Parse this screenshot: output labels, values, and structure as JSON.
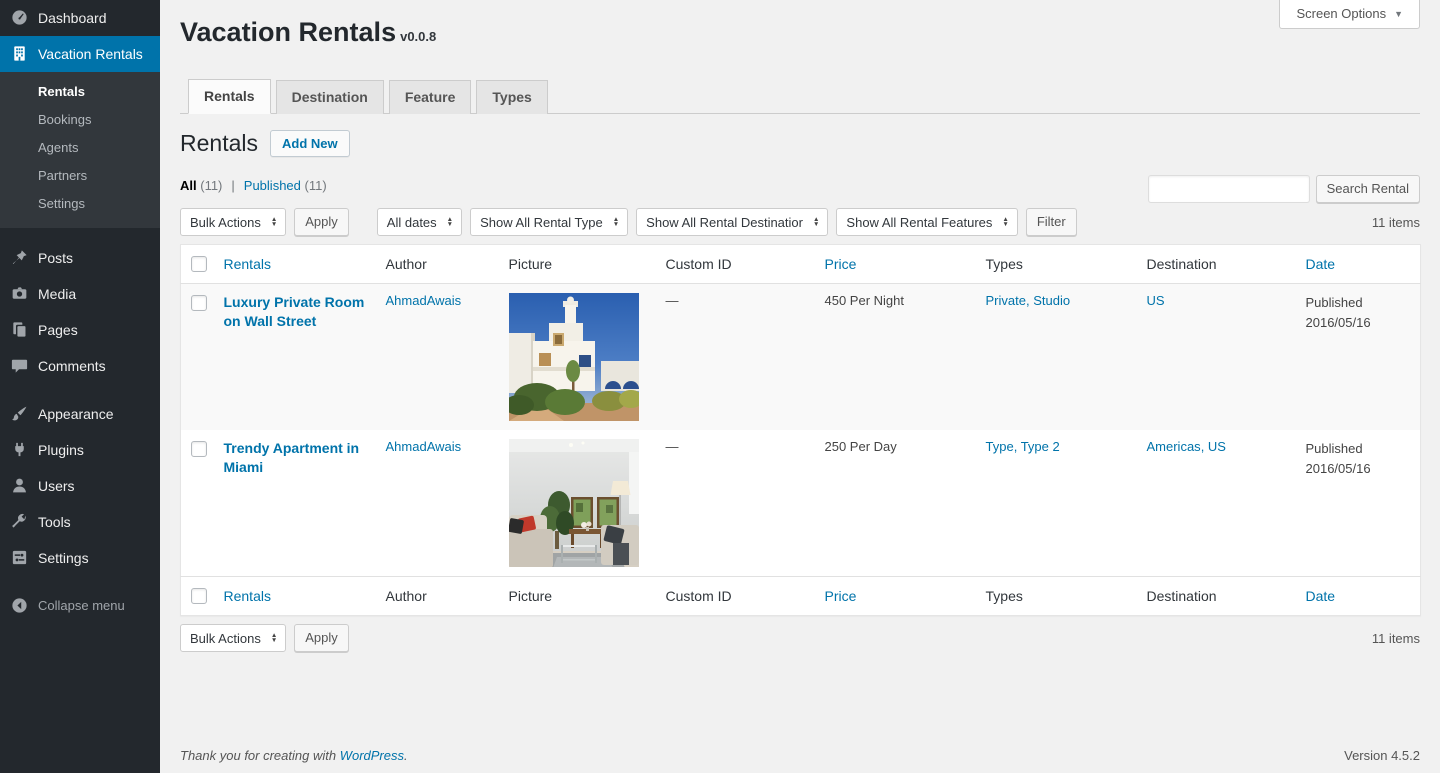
{
  "colors": {
    "accent": "#0073aa",
    "sidebar_bg": "#23282d",
    "sidebar_submenu_bg": "#32373c",
    "active_menu_bg": "#0073aa",
    "page_bg": "#f1f1f1",
    "alternate_row_bg": "#f9f9f9"
  },
  "screen_options": {
    "label": "Screen Options",
    "icon": "triangle-down"
  },
  "page": {
    "title": "Vacation Rentals",
    "version_badge": "v0.0.8"
  },
  "tabs": [
    {
      "label": "Rentals",
      "active": true
    },
    {
      "label": "Destination",
      "active": false
    },
    {
      "label": "Feature",
      "active": false
    },
    {
      "label": "Types",
      "active": false
    }
  ],
  "section": {
    "heading": "Rentals",
    "add_new_label": "Add New"
  },
  "views": [
    {
      "label": "All",
      "count": "(11)",
      "current": true
    },
    {
      "label": "Published",
      "count": "(11)",
      "current": false
    }
  ],
  "filters": {
    "bulk_actions": "Bulk Actions",
    "apply": "Apply",
    "all_dates": "All dates",
    "rental_type": "Show All Rental Type",
    "rental_destination": "Show All Rental Destinatior",
    "rental_features": "Show All Rental Features",
    "filter": "Filter"
  },
  "search": {
    "value": "",
    "button_label": "Search Rental"
  },
  "items_count": "11 items",
  "table": {
    "columns": [
      {
        "label": "Rentals",
        "sortable": true
      },
      {
        "label": "Author",
        "sortable": false
      },
      {
        "label": "Picture",
        "sortable": false
      },
      {
        "label": "Custom ID",
        "sortable": false
      },
      {
        "label": "Price",
        "sortable": true
      },
      {
        "label": "Types",
        "sortable": false
      },
      {
        "label": "Destination",
        "sortable": false
      },
      {
        "label": "Date",
        "sortable": true
      }
    ],
    "rows": [
      {
        "title": "Luxury Private Room on Wall Street",
        "author": "AhmadAwais",
        "picture": "villa",
        "custom_id": "—",
        "price": "450 Per Night",
        "types": [
          "Private",
          "Studio"
        ],
        "destinations": [
          "US"
        ],
        "date_status": "Published",
        "date": "2016/05/16"
      },
      {
        "title": "Trendy Apartment in Miami",
        "author": "AhmadAwais",
        "picture": "living-room",
        "custom_id": "—",
        "price": "250 Per Day",
        "types": [
          "Type",
          "Type 2"
        ],
        "destinations": [
          "Americas",
          "US"
        ],
        "date_status": "Published",
        "date": "2016/05/16"
      }
    ]
  },
  "footer": {
    "thanks_prefix": "Thank you for creating with ",
    "wordpress_link": "WordPress",
    "thanks_suffix": ".",
    "version": "Version 4.5.2"
  },
  "sidebar": {
    "items": [
      {
        "id": "dashboard",
        "label": "Dashboard",
        "icon": "dashboard-icon",
        "type": "top"
      },
      {
        "id": "vacation-rentals",
        "label": "Vacation Rentals",
        "icon": "building-icon",
        "type": "top",
        "active": true
      },
      {
        "id": "rentals",
        "label": "Rentals",
        "type": "sub",
        "active": true
      },
      {
        "id": "bookings",
        "label": "Bookings",
        "type": "sub"
      },
      {
        "id": "agents",
        "label": "Agents",
        "type": "sub"
      },
      {
        "id": "partners",
        "label": "Partners",
        "type": "sub"
      },
      {
        "id": "settings-sub",
        "label": "Settings",
        "type": "sub"
      },
      {
        "type": "separator"
      },
      {
        "id": "posts",
        "label": "Posts",
        "icon": "pin-icon",
        "type": "top"
      },
      {
        "id": "media",
        "label": "Media",
        "icon": "media-icon",
        "type": "top"
      },
      {
        "id": "pages",
        "label": "Pages",
        "icon": "pages-icon",
        "type": "top"
      },
      {
        "id": "comments",
        "label": "Comments",
        "icon": "comment-icon",
        "type": "top"
      },
      {
        "type": "separator"
      },
      {
        "id": "appearance",
        "label": "Appearance",
        "icon": "brush-icon",
        "type": "top"
      },
      {
        "id": "plugins",
        "label": "Plugins",
        "icon": "plug-icon",
        "type": "top"
      },
      {
        "id": "users",
        "label": "Users",
        "icon": "user-icon",
        "type": "top"
      },
      {
        "id": "tools",
        "label": "Tools",
        "icon": "wrench-icon",
        "type": "top"
      },
      {
        "id": "settings",
        "label": "Settings",
        "icon": "settings-icon",
        "type": "top"
      },
      {
        "type": "separator"
      },
      {
        "id": "collapse-menu",
        "label": "Collapse menu",
        "icon": "collapse-icon",
        "type": "top",
        "muted": true
      }
    ]
  }
}
